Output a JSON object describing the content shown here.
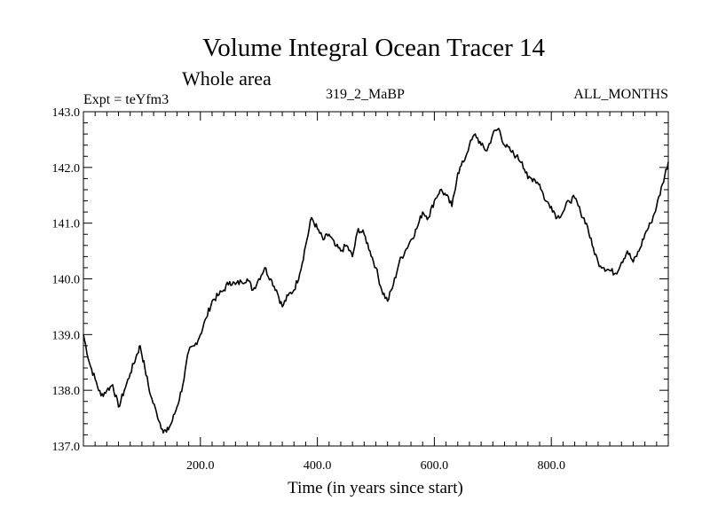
{
  "chart_data": {
    "type": "line",
    "title": "Volume Integral Ocean Tracer 14",
    "subtitle": "Whole area",
    "annotations": {
      "left": "Expt = teYfm3",
      "center": "319_2_MaBP",
      "right": "ALL_MONTHS"
    },
    "xlabel": "Time (in years since start)",
    "ylabel": "",
    "xlim": [
      0,
      1000
    ],
    "ylim": [
      137.0,
      143.0
    ],
    "xticks": [
      200,
      400,
      600,
      800
    ],
    "xtick_labels": [
      "200.0",
      "400.0",
      "600.0",
      "800.0"
    ],
    "yticks": [
      137.0,
      138.0,
      139.0,
      140.0,
      141.0,
      142.0,
      143.0
    ],
    "ytick_labels": [
      "137.0",
      "138.0",
      "139.0",
      "140.0",
      "141.0",
      "142.0",
      "143.0"
    ],
    "grid": false,
    "line_color": "#000000",
    "series": [
      {
        "x": [
          0,
          10,
          20,
          30,
          40,
          50,
          60,
          70,
          80,
          90,
          97,
          105,
          115,
          125,
          135,
          142,
          150,
          160,
          170,
          180,
          190,
          200,
          210,
          220,
          230,
          240,
          250,
          260,
          270,
          280,
          290,
          300,
          310,
          320,
          330,
          340,
          350,
          360,
          370,
          380,
          390,
          400,
          410,
          420,
          430,
          440,
          450,
          460,
          470,
          480,
          490,
          500,
          510,
          520,
          530,
          540,
          550,
          560,
          570,
          580,
          590,
          600,
          610,
          620,
          630,
          640,
          650,
          660,
          670,
          680,
          690,
          700,
          710,
          720,
          730,
          740,
          750,
          760,
          770,
          780,
          790,
          800,
          810,
          820,
          830,
          840,
          850,
          860,
          870,
          880,
          890,
          900,
          910,
          920,
          930,
          940,
          950,
          960,
          970,
          980,
          990,
          1000
        ],
        "y": [
          139.0,
          138.5,
          138.2,
          137.9,
          138.0,
          138.1,
          137.7,
          138.0,
          138.3,
          138.6,
          138.8,
          138.4,
          137.9,
          137.6,
          137.3,
          137.25,
          137.4,
          137.7,
          138.1,
          138.7,
          138.8,
          139.0,
          139.3,
          139.6,
          139.7,
          139.8,
          139.95,
          139.9,
          139.95,
          140.0,
          139.8,
          140.0,
          140.2,
          140.0,
          139.8,
          139.5,
          139.7,
          139.8,
          140.1,
          140.6,
          141.1,
          140.9,
          140.7,
          140.8,
          140.6,
          140.5,
          140.6,
          140.4,
          140.9,
          140.8,
          140.5,
          140.2,
          139.8,
          139.6,
          139.9,
          140.3,
          140.5,
          140.7,
          140.9,
          141.2,
          141.1,
          141.4,
          141.6,
          141.5,
          141.3,
          141.9,
          142.1,
          142.4,
          142.6,
          142.4,
          142.3,
          142.6,
          142.7,
          142.4,
          142.3,
          142.2,
          142.1,
          141.8,
          141.8,
          141.7,
          141.4,
          141.3,
          141.1,
          141.2,
          141.4,
          141.45,
          141.2,
          141.0,
          140.6,
          140.3,
          140.2,
          140.15,
          140.1,
          140.3,
          140.5,
          140.3,
          140.5,
          140.8,
          141.0,
          141.3,
          141.7,
          142.1
        ]
      }
    ]
  }
}
